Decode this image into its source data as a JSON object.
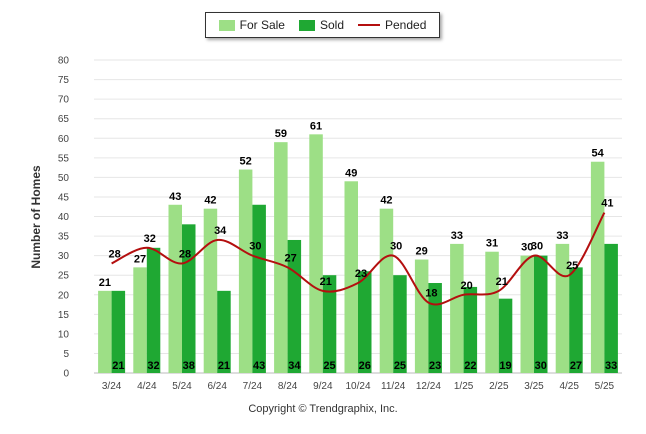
{
  "legend": {
    "for_sale": "For Sale",
    "sold": "Sold",
    "pended": "Pended"
  },
  "copyright": "Copyright © Trendgraphix, Inc.",
  "colors": {
    "for_sale": "#9ddf86",
    "sold": "#1fa833",
    "pended": "#b40f0f",
    "grid": "#e6e6e6"
  },
  "chart_data": {
    "type": "bar",
    "title": "",
    "xlabel": "",
    "ylabel": "Number of Homes",
    "ylim": [
      0,
      80
    ],
    "yticks": [
      0,
      5,
      10,
      15,
      20,
      25,
      30,
      35,
      40,
      45,
      50,
      55,
      60,
      65,
      70,
      75,
      80
    ],
    "grid": true,
    "legend_position": "top-center",
    "categories": [
      "3/24",
      "4/24",
      "5/24",
      "6/24",
      "7/24",
      "8/24",
      "9/24",
      "10/24",
      "11/24",
      "12/24",
      "1/25",
      "2/25",
      "3/25",
      "4/25",
      "5/25"
    ],
    "series": [
      {
        "name": "For Sale",
        "type": "bar",
        "values": [
          21,
          27,
          43,
          42,
          52,
          59,
          61,
          49,
          42,
          29,
          33,
          31,
          30,
          33,
          54
        ]
      },
      {
        "name": "Sold",
        "type": "bar",
        "values": [
          21,
          32,
          38,
          21,
          43,
          34,
          25,
          26,
          25,
          23,
          22,
          19,
          30,
          27,
          33
        ]
      },
      {
        "name": "Pended",
        "type": "line",
        "values": [
          28,
          32,
          28,
          34,
          30,
          27,
          21,
          23,
          30,
          18,
          20,
          21,
          30,
          25,
          41
        ]
      }
    ]
  }
}
